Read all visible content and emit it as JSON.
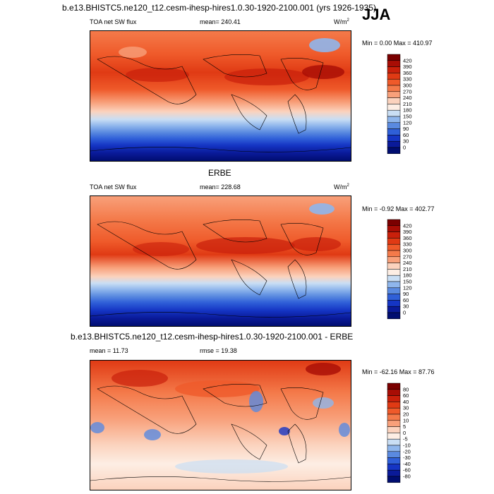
{
  "header": {
    "title": "b.e13.BHISTC5.ne120_t12.cesm-ihesp-hires1.0.30-1920-2100.001 (yrs 1926-1935)",
    "season": "JJA"
  },
  "panels": [
    {
      "id": "model",
      "title": "",
      "left_label": "TOA net SW flux",
      "center_label": "mean= 240.41",
      "units": "W/m",
      "units_sup": "2",
      "minmax": "Min =   0.00 Max = 410.97"
    },
    {
      "id": "obs",
      "title": "ERBE",
      "left_label": "TOA net SW flux",
      "center_label": "mean= 228.68",
      "units": "W/m",
      "units_sup": "2",
      "minmax": "Min =  -0.92 Max = 402.77"
    },
    {
      "id": "diff",
      "title": "b.e13.BHISTC5.ne120_t12.cesm-ihesp-hires1.0.30-1920-2100.001 - ERBE",
      "left_label": "mean =  11.73",
      "center_label": "rmse =  19.38",
      "units": "",
      "units_sup": "",
      "minmax": "Min = -62.16 Max =  87.76"
    }
  ],
  "chart_data": [
    {
      "type": "heatmap",
      "title": "TOA net SW flux",
      "units": "W/m2",
      "mean": 240.41,
      "min": 0.0,
      "max": 410.97,
      "colorbar": {
        "levels": [
          "420",
          "390",
          "360",
          "330",
          "300",
          "270",
          "240",
          "210",
          "180",
          "150",
          "120",
          "90",
          "60",
          "30",
          "0"
        ],
        "colors": [
          "#7a0000",
          "#a80d05",
          "#c9200b",
          "#e03a14",
          "#ef5a2a",
          "#f47a4a",
          "#f8a07a",
          "#fbd2bd",
          "#fdeee4",
          "#c9def4",
          "#8fb6ec",
          "#5a8ae0",
          "#2f5fd8",
          "#1535c4",
          "#0a1a99",
          "#000d70"
        ]
      }
    },
    {
      "type": "heatmap",
      "title": "ERBE TOA net SW flux",
      "units": "W/m2",
      "mean": 228.68,
      "min": -0.92,
      "max": 402.77,
      "colorbar": {
        "levels": [
          "420",
          "390",
          "360",
          "330",
          "300",
          "270",
          "240",
          "210",
          "180",
          "150",
          "120",
          "90",
          "60",
          "30",
          "0"
        ],
        "colors": [
          "#7a0000",
          "#a80d05",
          "#c9200b",
          "#e03a14",
          "#ef5a2a",
          "#f47a4a",
          "#f8a07a",
          "#fbd2bd",
          "#fdeee4",
          "#c9def4",
          "#8fb6ec",
          "#5a8ae0",
          "#2f5fd8",
          "#1535c4",
          "#0a1a99",
          "#000d70"
        ]
      }
    },
    {
      "type": "heatmap",
      "title": "b.e13.BHISTC5.ne120_t12.cesm-ihesp-hires1.0.30-1920-2100.001 - ERBE",
      "mean": 11.73,
      "rmse": 19.38,
      "min": -62.16,
      "max": 87.76,
      "colorbar": {
        "levels": [
          "80",
          "60",
          "40",
          "30",
          "20",
          "10",
          "5",
          "0",
          "-5",
          "-10",
          "-20",
          "-30",
          "-40",
          "-60",
          "-80"
        ],
        "colors": [
          "#7a0000",
          "#a80d05",
          "#c9200b",
          "#e03a14",
          "#ef5a2a",
          "#f47a4a",
          "#f8a07a",
          "#fbd2bd",
          "#fdeee4",
          "#c9def4",
          "#8fb6ec",
          "#5a8ae0",
          "#2f5fd8",
          "#1535c4",
          "#0a1a99",
          "#000d70"
        ]
      }
    }
  ]
}
